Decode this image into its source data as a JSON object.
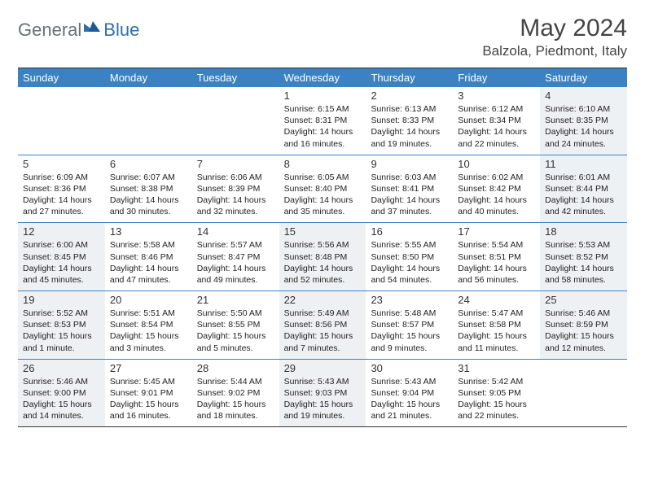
{
  "logo": {
    "general": "General",
    "blue": "Blue"
  },
  "title": "May 2024",
  "location": "Balzola, Piedmont, Italy",
  "colors": {
    "header_bg": "#3a82c4",
    "border": "#3a82c4",
    "shade_bg": "#eef1f3",
    "logo_gray": "#6b7074",
    "logo_blue": "#2f6fa8"
  },
  "day_headers": [
    "Sunday",
    "Monday",
    "Tuesday",
    "Wednesday",
    "Thursday",
    "Friday",
    "Saturday"
  ],
  "weeks": [
    [
      {
        "empty": true
      },
      {
        "empty": true
      },
      {
        "empty": true
      },
      {
        "num": "1",
        "sunrise": "6:15 AM",
        "sunset": "8:31 PM",
        "daylight": "14 hours and 16 minutes."
      },
      {
        "num": "2",
        "sunrise": "6:13 AM",
        "sunset": "8:33 PM",
        "daylight": "14 hours and 19 minutes."
      },
      {
        "num": "3",
        "sunrise": "6:12 AM",
        "sunset": "8:34 PM",
        "daylight": "14 hours and 22 minutes."
      },
      {
        "num": "4",
        "sunrise": "6:10 AM",
        "sunset": "8:35 PM",
        "daylight": "14 hours and 24 minutes.",
        "shade": true
      }
    ],
    [
      {
        "num": "5",
        "sunrise": "6:09 AM",
        "sunset": "8:36 PM",
        "daylight": "14 hours and 27 minutes."
      },
      {
        "num": "6",
        "sunrise": "6:07 AM",
        "sunset": "8:38 PM",
        "daylight": "14 hours and 30 minutes."
      },
      {
        "num": "7",
        "sunrise": "6:06 AM",
        "sunset": "8:39 PM",
        "daylight": "14 hours and 32 minutes."
      },
      {
        "num": "8",
        "sunrise": "6:05 AM",
        "sunset": "8:40 PM",
        "daylight": "14 hours and 35 minutes."
      },
      {
        "num": "9",
        "sunrise": "6:03 AM",
        "sunset": "8:41 PM",
        "daylight": "14 hours and 37 minutes."
      },
      {
        "num": "10",
        "sunrise": "6:02 AM",
        "sunset": "8:42 PM",
        "daylight": "14 hours and 40 minutes."
      },
      {
        "num": "11",
        "sunrise": "6:01 AM",
        "sunset": "8:44 PM",
        "daylight": "14 hours and 42 minutes.",
        "shade": true
      }
    ],
    [
      {
        "num": "12",
        "sunrise": "6:00 AM",
        "sunset": "8:45 PM",
        "daylight": "14 hours and 45 minutes.",
        "shade": true
      },
      {
        "num": "13",
        "sunrise": "5:58 AM",
        "sunset": "8:46 PM",
        "daylight": "14 hours and 47 minutes."
      },
      {
        "num": "14",
        "sunrise": "5:57 AM",
        "sunset": "8:47 PM",
        "daylight": "14 hours and 49 minutes."
      },
      {
        "num": "15",
        "sunrise": "5:56 AM",
        "sunset": "8:48 PM",
        "daylight": "14 hours and 52 minutes.",
        "shade": true
      },
      {
        "num": "16",
        "sunrise": "5:55 AM",
        "sunset": "8:50 PM",
        "daylight": "14 hours and 54 minutes."
      },
      {
        "num": "17",
        "sunrise": "5:54 AM",
        "sunset": "8:51 PM",
        "daylight": "14 hours and 56 minutes."
      },
      {
        "num": "18",
        "sunrise": "5:53 AM",
        "sunset": "8:52 PM",
        "daylight": "14 hours and 58 minutes.",
        "shade": true
      }
    ],
    [
      {
        "num": "19",
        "sunrise": "5:52 AM",
        "sunset": "8:53 PM",
        "daylight": "15 hours and 1 minute.",
        "shade": true
      },
      {
        "num": "20",
        "sunrise": "5:51 AM",
        "sunset": "8:54 PM",
        "daylight": "15 hours and 3 minutes."
      },
      {
        "num": "21",
        "sunrise": "5:50 AM",
        "sunset": "8:55 PM",
        "daylight": "15 hours and 5 minutes."
      },
      {
        "num": "22",
        "sunrise": "5:49 AM",
        "sunset": "8:56 PM",
        "daylight": "15 hours and 7 minutes.",
        "shade": true
      },
      {
        "num": "23",
        "sunrise": "5:48 AM",
        "sunset": "8:57 PM",
        "daylight": "15 hours and 9 minutes."
      },
      {
        "num": "24",
        "sunrise": "5:47 AM",
        "sunset": "8:58 PM",
        "daylight": "15 hours and 11 minutes."
      },
      {
        "num": "25",
        "sunrise": "5:46 AM",
        "sunset": "8:59 PM",
        "daylight": "15 hours and 12 minutes.",
        "shade": true
      }
    ],
    [
      {
        "num": "26",
        "sunrise": "5:46 AM",
        "sunset": "9:00 PM",
        "daylight": "15 hours and 14 minutes.",
        "shade": true
      },
      {
        "num": "27",
        "sunrise": "5:45 AM",
        "sunset": "9:01 PM",
        "daylight": "15 hours and 16 minutes."
      },
      {
        "num": "28",
        "sunrise": "5:44 AM",
        "sunset": "9:02 PM",
        "daylight": "15 hours and 18 minutes."
      },
      {
        "num": "29",
        "sunrise": "5:43 AM",
        "sunset": "9:03 PM",
        "daylight": "15 hours and 19 minutes.",
        "shade": true
      },
      {
        "num": "30",
        "sunrise": "5:43 AM",
        "sunset": "9:04 PM",
        "daylight": "15 hours and 21 minutes."
      },
      {
        "num": "31",
        "sunrise": "5:42 AM",
        "sunset": "9:05 PM",
        "daylight": "15 hours and 22 minutes."
      },
      {
        "empty": true
      }
    ]
  ],
  "labels": {
    "sunrise_prefix": "Sunrise: ",
    "sunset_prefix": "Sunset: ",
    "daylight_prefix": "Daylight: "
  }
}
